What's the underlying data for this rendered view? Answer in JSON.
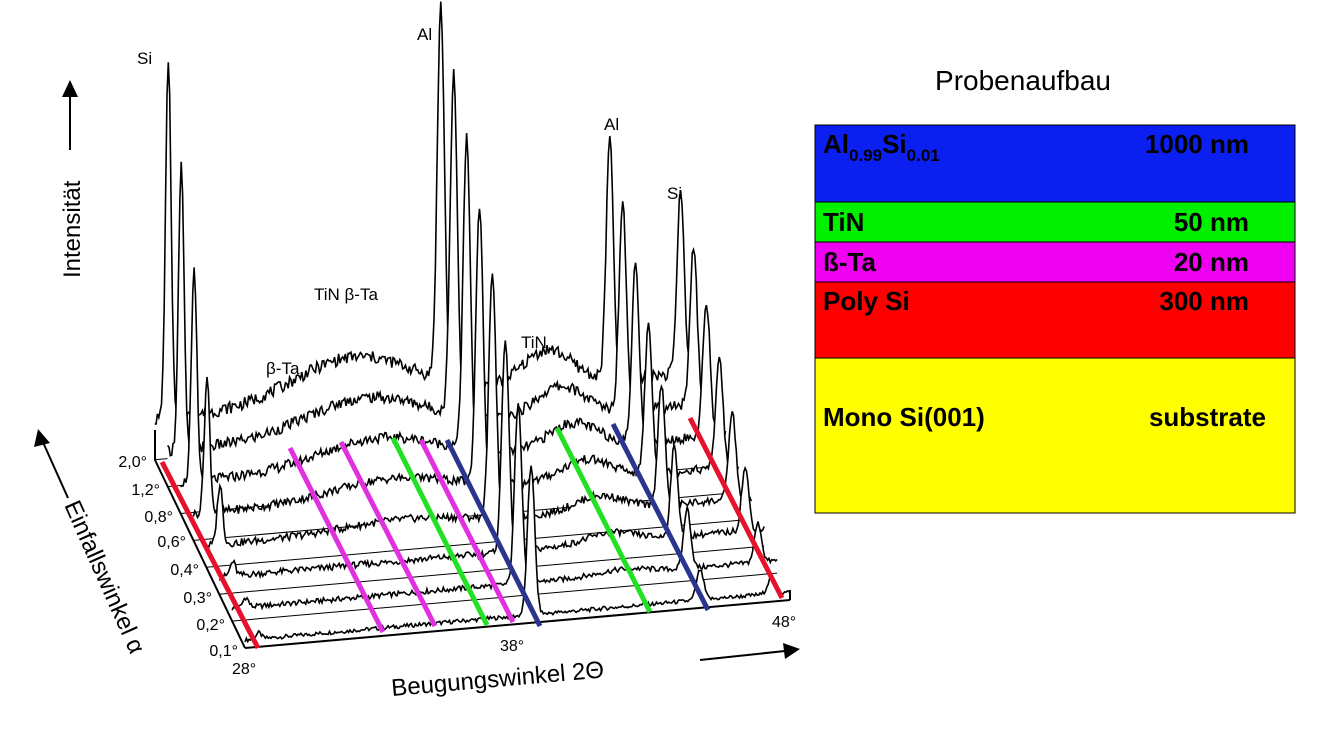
{
  "plot": {
    "peaks": [
      "Si",
      "Al",
      "TiN β-Ta",
      "β-Ta",
      "TiN",
      "Al",
      "Si"
    ],
    "y_axis": "Intensität",
    "depth_axis": "Einfallswinkel α",
    "x_axis": "Beugungswinkel 2Θ",
    "depth_ticks": [
      "2,0°",
      "1,2°",
      "0,8°",
      "0,6°",
      "0,4°",
      "0,3°",
      "0,2°",
      "0,1°"
    ],
    "x_ticks": [
      "28°",
      "38°",
      "48°"
    ]
  },
  "panel": {
    "title": "Probenaufbau",
    "layers": [
      {
        "name": [
          "Al",
          "0.99",
          "Si",
          "0.01"
        ],
        "thickness": "1000 nm"
      },
      {
        "name": "TiN",
        "thickness": "50 nm"
      },
      {
        "name": "ß-Ta",
        "thickness": "20 nm"
      },
      {
        "name": "Poly Si",
        "thickness": "300 nm"
      },
      {
        "name": "Mono Si(001)",
        "thickness": "substrate"
      }
    ]
  }
}
